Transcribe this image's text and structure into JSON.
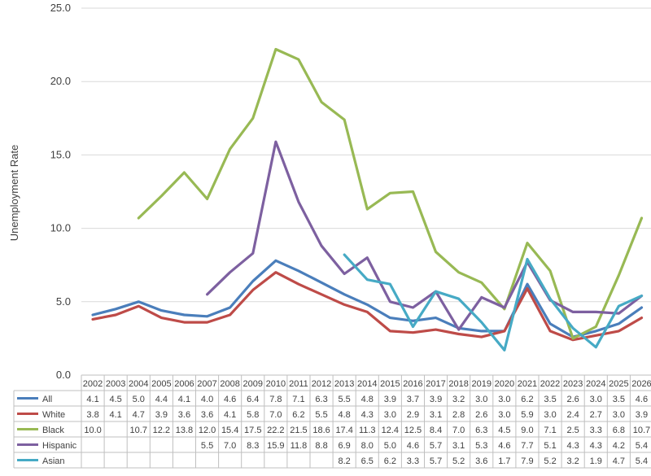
{
  "chart_data": {
    "type": "line",
    "ylabel": "Unemployment Rate",
    "ylim": [
      0,
      25
    ],
    "y_ticks": [
      "0.0",
      "5.0",
      "10.0",
      "15.0",
      "20.0",
      "25.0"
    ],
    "grid": true,
    "legend": "data-table",
    "categories": [
      "2002",
      "2003",
      "2004",
      "2005",
      "2006",
      "2007",
      "2008",
      "2009",
      "2010",
      "2011",
      "2012",
      "2013",
      "2014",
      "2015",
      "2016",
      "2017",
      "2018",
      "2019",
      "2020",
      "2021",
      "2022",
      "2023",
      "2024",
      "2025",
      "2026"
    ],
    "series": [
      {
        "name": "All",
        "color": "#4a7ebb",
        "values": [
          4.1,
          4.5,
          5.0,
          4.4,
          4.1,
          4.0,
          4.6,
          6.4,
          7.8,
          7.1,
          6.3,
          5.5,
          4.8,
          3.9,
          3.7,
          3.9,
          3.2,
          3.0,
          3.0,
          6.2,
          3.5,
          2.6,
          3.0,
          3.5,
          4.6
        ],
        "labels": [
          "4.1",
          "4.5",
          "5.0",
          "4.4",
          "4.1",
          "4.0",
          "4.6",
          "6.4",
          "7.8",
          "7.1",
          "6.3",
          "5.5",
          "4.8",
          "3.9",
          "3.7",
          "3.9",
          "3.2",
          "3.0",
          "3.0",
          "6.2",
          "3.5",
          "2.6",
          "3.0",
          "3.5",
          "4.6"
        ]
      },
      {
        "name": "White",
        "color": "#be4b48",
        "values": [
          3.8,
          4.1,
          4.7,
          3.9,
          3.6,
          3.6,
          4.1,
          5.8,
          7.0,
          6.2,
          5.5,
          4.8,
          4.3,
          3.0,
          2.9,
          3.1,
          2.8,
          2.6,
          3.0,
          5.9,
          3.0,
          2.4,
          2.7,
          3.0,
          3.9
        ],
        "labels": [
          "3.8",
          "4.1",
          "4.7",
          "3.9",
          "3.6",
          "3.6",
          "4.1",
          "5.8",
          "7.0",
          "6.2",
          "5.5",
          "4.8",
          "4.3",
          "3.0",
          "2.9",
          "3.1",
          "2.8",
          "2.6",
          "3.0",
          "5.9",
          "3.0",
          "2.4",
          "2.7",
          "3.0",
          "3.9"
        ]
      },
      {
        "name": "Black",
        "color": "#98b954",
        "values": [
          10.0,
          null,
          10.7,
          12.2,
          13.8,
          12.0,
          15.4,
          17.5,
          22.2,
          21.5,
          18.6,
          17.4,
          11.3,
          12.4,
          12.5,
          8.4,
          7.0,
          6.3,
          4.5,
          9.0,
          7.1,
          2.5,
          3.3,
          6.8,
          10.7
        ],
        "labels": [
          "10.0",
          "",
          "10.7",
          "12.2",
          "13.8",
          "12.0",
          "15.4",
          "17.5",
          "22.2",
          "21.5",
          "18.6",
          "17.4",
          "11.3",
          "12.4",
          "12.5",
          "8.4",
          "7.0",
          "6.3",
          "4.5",
          "9.0",
          "7.1",
          "2.5",
          "3.3",
          "6.8",
          "10.7"
        ]
      },
      {
        "name": "Hispanic",
        "color": "#7d60a0",
        "values": [
          null,
          null,
          null,
          null,
          null,
          5.5,
          7.0,
          8.3,
          15.9,
          11.8,
          8.8,
          6.9,
          8.0,
          5.0,
          4.6,
          5.7,
          3.1,
          5.3,
          4.6,
          7.7,
          5.1,
          4.3,
          4.3,
          4.2,
          5.4
        ],
        "labels": [
          "",
          "",
          "",
          "",
          "",
          "5.5",
          "7.0",
          "8.3",
          "15.9",
          "11.8",
          "8.8",
          "6.9",
          "8.0",
          "5.0",
          "4.6",
          "5.7",
          "3.1",
          "5.3",
          "4.6",
          "7.7",
          "5.1",
          "4.3",
          "4.3",
          "4.2",
          "5.4"
        ]
      },
      {
        "name": "Asian",
        "color": "#46aac5",
        "values": [
          null,
          null,
          null,
          null,
          null,
          null,
          null,
          null,
          null,
          null,
          null,
          8.2,
          6.5,
          6.2,
          3.3,
          5.7,
          5.2,
          3.6,
          1.7,
          7.9,
          5.2,
          3.2,
          1.9,
          4.7,
          5.4
        ],
        "labels": [
          "",
          "",
          "",
          "",
          "",
          "",
          "",
          "",
          "",
          "",
          "",
          "8.2",
          "6.5",
          "6.2",
          "3.3",
          "5.7",
          "5.2",
          "3.6",
          "1.7",
          "7.9",
          "5.2",
          "3.2",
          "1.9",
          "4.7",
          "5.4"
        ]
      }
    ]
  }
}
